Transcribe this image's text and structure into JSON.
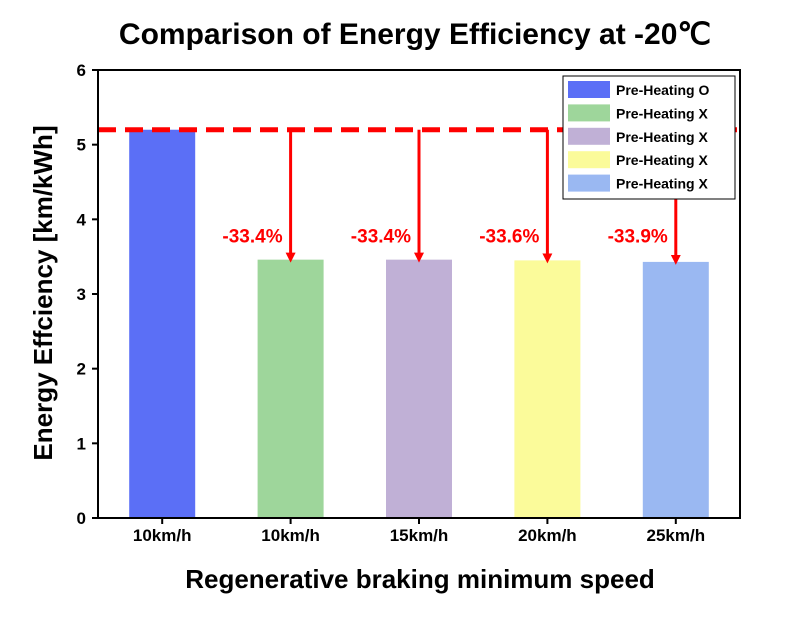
{
  "chart_data": {
    "type": "bar",
    "title": "Comparison of Energy Efficiency at -20℃",
    "xlabel": "Regenerative braking minimum speed",
    "ylabel": "Energy Effciency [km/kWh]",
    "ylim": [
      0,
      6
    ],
    "yticks": [
      "0",
      "1",
      "2",
      "3",
      "4",
      "5",
      "6"
    ],
    "categories": [
      "10km/h",
      "10km/h",
      "15km/h",
      "20km/h",
      "25km/h"
    ],
    "values": [
      5.2,
      3.46,
      3.46,
      3.45,
      3.43
    ],
    "colors": [
      "#5b6ff6",
      "#9ed69b",
      "#c0b0d6",
      "#fbfb9a",
      "#9ab8f2"
    ],
    "legend": {
      "placement": "top-right",
      "entries": [
        "Pre-Heating O",
        "Pre-Heating X",
        "Pre-Heating X",
        "Pre-Heating X",
        "Pre-Heating X"
      ]
    },
    "reference_line": {
      "value": 5.2,
      "color": "#ff0000",
      "style": "dashed"
    },
    "annotations": [
      "",
      "-33.4%",
      "-33.4%",
      "-33.6%",
      "-33.9%"
    ],
    "annotation_color": "#ff0000",
    "grid": false
  }
}
